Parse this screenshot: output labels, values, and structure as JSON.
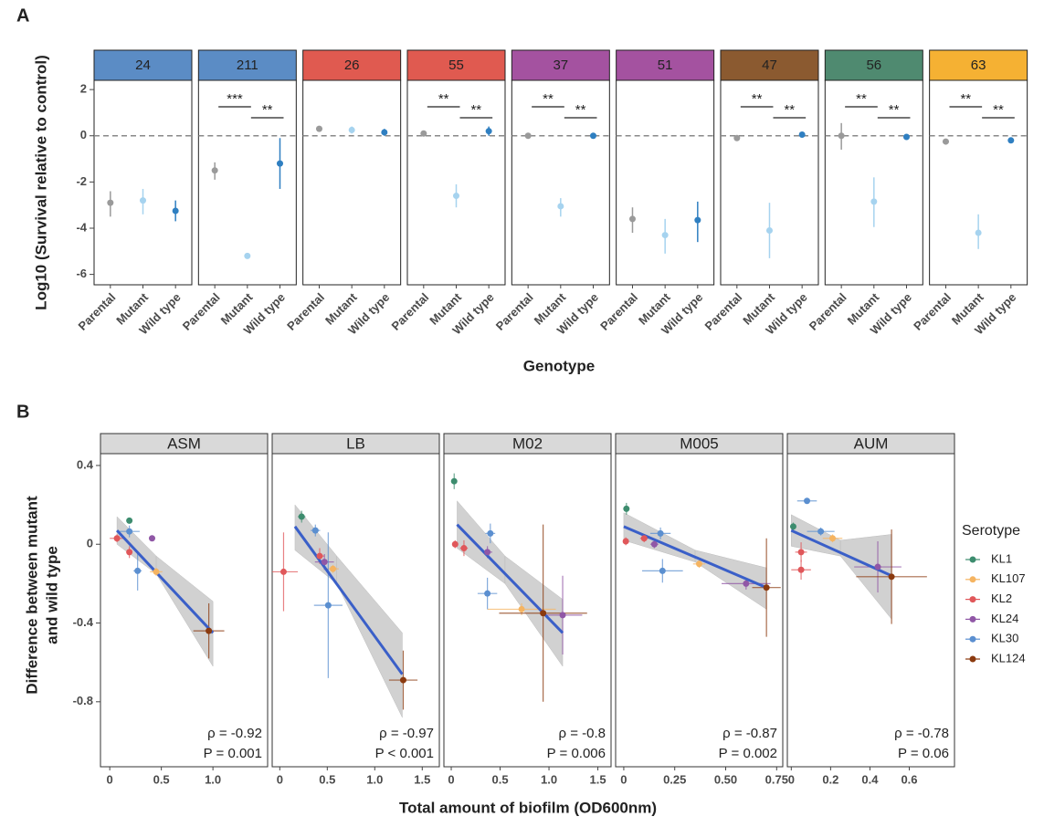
{
  "chart_data": [
    {
      "type": "pointrange",
      "panel_label": "A",
      "ylabel": "Log10 (Survival relative to control)",
      "xlabel": "Genotype",
      "categories": [
        "Parental",
        "Mutant",
        "Wild type"
      ],
      "colors": [
        "#9a9a9a",
        "#a6d3ef",
        "#2f7fc1"
      ],
      "ylim": [
        -6.45,
        2.4
      ],
      "yticks": [
        2,
        0,
        -2,
        -4,
        -6
      ],
      "hline": 0,
      "facets": [
        {
          "name": "24",
          "strip_color": "#5b8cc5",
          "values": [
            -2.9,
            -2.8,
            -3.25
          ],
          "lower": [
            -3.5,
            -3.4,
            -3.7
          ],
          "upper": [
            -2.4,
            -2.3,
            -2.8
          ],
          "significance": []
        },
        {
          "name": "211",
          "strip_color": "#5b8cc5",
          "values": [
            -1.5,
            -5.2,
            -1.2
          ],
          "lower": [
            -1.9,
            -5.25,
            -2.3
          ],
          "upper": [
            -1.15,
            -5.15,
            -0.1
          ],
          "significance": [
            "***",
            "**"
          ]
        },
        {
          "name": "26",
          "strip_color": "#e05a50",
          "values": [
            0.3,
            0.25,
            0.15
          ],
          "lower": [
            0.2,
            0.1,
            0.0
          ],
          "upper": [
            0.4,
            0.4,
            0.3
          ],
          "significance": []
        },
        {
          "name": "55",
          "strip_color": "#e05a50",
          "values": [
            0.1,
            -2.6,
            0.2
          ],
          "lower": [
            0.05,
            -3.1,
            0.0
          ],
          "upper": [
            0.2,
            -2.1,
            0.4
          ],
          "significance": [
            "**",
            "**"
          ]
        },
        {
          "name": "37",
          "strip_color": "#a452a0",
          "values": [
            0.0,
            -3.05,
            0.0
          ],
          "lower": [
            -0.05,
            -3.5,
            -0.05
          ],
          "upper": [
            0.05,
            -2.7,
            0.05
          ],
          "significance": [
            "**",
            "**"
          ]
        },
        {
          "name": "51",
          "strip_color": "#a452a0",
          "values": [
            -3.6,
            -4.3,
            -3.65
          ],
          "lower": [
            -4.2,
            -5.1,
            -4.6
          ],
          "upper": [
            -3.1,
            -3.6,
            -2.85
          ],
          "significance": []
        },
        {
          "name": "47",
          "strip_color": "#8b5a30",
          "values": [
            -0.1,
            -4.1,
            0.05
          ],
          "lower": [
            -0.2,
            -5.3,
            0.0
          ],
          "upper": [
            0.0,
            -2.9,
            0.1
          ],
          "significance": [
            "**",
            "**"
          ]
        },
        {
          "name": "56",
          "strip_color": "#4f8a70",
          "values": [
            0.0,
            -2.85,
            -0.05
          ],
          "lower": [
            -0.6,
            -3.95,
            -0.1
          ],
          "upper": [
            0.55,
            -1.8,
            0.0
          ],
          "significance": [
            "**",
            "**"
          ]
        },
        {
          "name": "63",
          "strip_color": "#f5b133",
          "values": [
            -0.25,
            -4.2,
            -0.2
          ],
          "lower": [
            -0.3,
            -4.9,
            -0.25
          ],
          "upper": [
            -0.2,
            -3.4,
            -0.15
          ],
          "significance": [
            "**",
            "**"
          ]
        }
      ]
    },
    {
      "type": "scatter",
      "panel_label": "B",
      "ylabel": [
        "Difference between mutant",
        "and wild type"
      ],
      "xlabel": "Total amount of biofilm (OD600nm)",
      "legend_title": "Serotype",
      "ylim": [
        -1.13,
        0.46
      ],
      "yticks": [
        0.4,
        0,
        -0.4,
        -0.8
      ],
      "fit_color": "#3a5fc8",
      "facets": [
        {
          "name": "ASM",
          "xlim": [
            -0.09,
            1.53
          ],
          "xticks": [
            0,
            0.5,
            {
              "value": 1,
              "label": "1.0"
            }
          ],
          "fit_x": [
            0.07,
            1.0
          ],
          "fit_y": [
            0.07,
            -0.45
          ],
          "band_x": [
            0.07,
            0.45,
            1.0
          ],
          "band_lower": [
            0.0,
            -0.15,
            -0.62
          ],
          "band_upper": [
            0.14,
            -0.06,
            -0.29
          ],
          "rho": "ρ = -0.92",
          "p": "P = 0.001"
        },
        {
          "name": "LB",
          "xlim": [
            -0.08,
            1.68
          ],
          "xticks": [
            0,
            0.5,
            {
              "value": 1,
              "label": "1.0"
            },
            1.5
          ],
          "fit_x": [
            0.16,
            1.29
          ],
          "fit_y": [
            0.09,
            -0.66
          ],
          "band_x": [
            0.16,
            0.6,
            1.29
          ],
          "band_lower": [
            -0.03,
            -0.2,
            -0.88
          ],
          "band_upper": [
            0.2,
            -0.06,
            -0.45
          ],
          "rho": "ρ = -0.97",
          "p": "P < 0.001"
        },
        {
          "name": "M02",
          "xlim": [
            -0.075,
            1.635
          ],
          "xticks": [
            0,
            0.5,
            {
              "value": 1,
              "label": "1.0"
            },
            1.5
          ],
          "fit_x": [
            0.06,
            1.14
          ],
          "fit_y": [
            0.1,
            -0.45
          ],
          "band_x": [
            0.06,
            0.55,
            1.14
          ],
          "band_lower": [
            -0.02,
            -0.2,
            -0.62
          ],
          "band_upper": [
            0.22,
            -0.06,
            -0.28
          ],
          "rho": "ρ = -0.8",
          "p": "P = 0.006"
        },
        {
          "name": "M005",
          "xlim": [
            -0.04,
            0.78
          ],
          "xticks": [
            0,
            0.25,
            {
              "value": 0.5,
              "label": "0.50"
            },
            0.75
          ],
          "fit_x": [
            0.0,
            0.7
          ],
          "fit_y": [
            0.09,
            -0.22
          ],
          "band_x": [
            0.0,
            0.35,
            0.7
          ],
          "band_lower": [
            0.02,
            -0.09,
            -0.33
          ],
          "band_upper": [
            0.16,
            -0.03,
            -0.12
          ],
          "rho": "ρ = -0.87",
          "p": "P = 0.002"
        },
        {
          "name": "AUM",
          "xlim": [
            -0.02,
            0.83
          ],
          "xticks": [
            0,
            0.2,
            0.4,
            0.6
          ],
          "fit_x": [
            0.0,
            0.51
          ],
          "fit_y": [
            0.07,
            -0.16
          ],
          "band_x": [
            0.0,
            0.25,
            0.51
          ],
          "band_lower": [
            -0.01,
            -0.06,
            -0.38
          ],
          "band_upper": [
            0.15,
            0.02,
            0.05
          ],
          "rho": "ρ = -0.78",
          "p": "P = 0.06"
        }
      ],
      "series": [
        {
          "name": "KL1",
          "color": "#3d8c6e",
          "x": [
            [
              0.19
            ],
            [
              0.23
            ],
            [
              0.03
            ],
            [
              0.013
            ],
            [
              0.01
            ]
          ],
          "y": [
            [
              0.12
            ],
            [
              0.14
            ],
            [
              0.32
            ],
            [
              0.18
            ],
            [
              0.09
            ]
          ],
          "xerr": [
            [
              0.02
            ],
            [
              0.04
            ],
            [
              0.02
            ],
            [
              0.01
            ],
            [
              0.01
            ]
          ],
          "yerr": [
            [
              0.01
            ],
            [
              0.03
            ],
            [
              0.04
            ],
            [
              0.03
            ],
            [
              0.02
            ]
          ]
        },
        {
          "name": "KL107",
          "color": "#f5b461",
          "x": [
            [
              0.45
            ],
            [
              0.56
            ],
            [
              0.72
            ],
            [
              0.37
            ],
            [
              0.21
            ]
          ],
          "y": [
            [
              -0.14
            ],
            [
              -0.125
            ],
            [
              -0.33
            ],
            [
              -0.1
            ],
            [
              0.03
            ]
          ],
          "xerr": [
            [
              0.06
            ],
            [
              0.06
            ],
            [
              0.35
            ],
            [
              0.03
            ],
            [
              0.05
            ]
          ],
          "yerr": [
            [
              0.02
            ],
            [
              0.02
            ],
            [
              0.03
            ],
            [
              0.02
            ],
            [
              0.02
            ]
          ]
        },
        {
          "name": "KL2",
          "color": "#e0575a",
          "x": [
            [
              0.07,
              0.19
            ],
            [
              0.04,
              0.42
            ],
            [
              0.04,
              0.13
            ],
            [
              0.01,
              0.1
            ],
            [
              0.05,
              0.05
            ]
          ],
          "y": [
            [
              0.03,
              -0.04
            ],
            [
              -0.14,
              -0.06
            ],
            [
              0,
              -0.02
            ],
            [
              0.015,
              0.03
            ],
            [
              -0.04,
              -0.13
            ]
          ],
          "xerr": [
            [
              0.07,
              0.02
            ],
            [
              0.15,
              0.05
            ],
            [
              0.03,
              0.04
            ],
            [
              0.01,
              0.02
            ],
            [
              0.03,
              0.05
            ]
          ],
          "yerr": [
            [
              0.02,
              0.03
            ],
            [
              0.2,
              0.04
            ],
            [
              0.02,
              0.04
            ],
            [
              0.02,
              0.02
            ],
            [
              0.05,
              0.05
            ]
          ]
        },
        {
          "name": "KL24",
          "color": "#9057a6",
          "x": [
            [
              0.41
            ],
            [
              0.47
            ],
            [
              0.37,
              1.14
            ],
            [
              0.15,
              0.6
            ],
            [
              0.44
            ]
          ],
          "y": [
            [
              0.03
            ],
            [
              -0.09
            ],
            [
              -0.04,
              -0.36
            ],
            [
              0,
              -0.2
            ],
            [
              -0.115
            ]
          ],
          "xerr": [
            [
              0.03
            ],
            [
              0.1
            ],
            [
              0.05,
              0.2
            ],
            [
              0.02,
              0.12
            ],
            [
              0.12
            ]
          ],
          "yerr": [
            [
              0.01
            ],
            [
              0.04
            ],
            [
              0.03,
              0.2
            ],
            [
              0.02,
              0.03
            ],
            [
              0.13
            ]
          ]
        },
        {
          "name": "KL30",
          "color": "#5b8fd0",
          "x": [
            [
              0.19,
              0.27
            ],
            [
              0.375,
              0.51
            ],
            [
              0.4,
              0.37
            ],
            [
              0.18,
              0.19
            ],
            [
              0.08,
              0.15
            ]
          ],
          "y": [
            [
              0.065,
              -0.135
            ],
            [
              0.07,
              -0.31
            ],
            [
              0.055,
              -0.25
            ],
            [
              0.055,
              -0.135
            ],
            [
              0.22,
              0.065
            ]
          ],
          "xerr": [
            [
              0.1,
              0.04
            ],
            [
              0.05,
              0.15
            ],
            [
              0.05,
              0.1
            ],
            [
              0.05,
              0.1
            ],
            [
              0.05,
              0.07
            ]
          ],
          "yerr": [
            [
              0.03,
              0.1
            ],
            [
              0.03,
              0.37
            ],
            [
              0.05,
              0.08
            ],
            [
              0.03,
              0.06
            ],
            [
              0.01,
              0.02
            ]
          ]
        },
        {
          "name": "KL124",
          "color": "#8b3a0f",
          "x": [
            [
              0.96
            ],
            [
              1.3
            ],
            [
              0.94
            ],
            [
              0.7
            ],
            [
              0.51
            ]
          ],
          "y": [
            [
              -0.44
            ],
            [
              -0.69
            ],
            [
              -0.35
            ],
            [
              -0.22
            ],
            [
              -0.165
            ]
          ],
          "xerr": [
            [
              0.15
            ],
            [
              0.15
            ],
            [
              0.45
            ],
            [
              0.07
            ],
            [
              0.18
            ]
          ],
          "yerr": [
            [
              0.14
            ],
            [
              0.15
            ],
            [
              0.45
            ],
            [
              0.25
            ],
            [
              0.24
            ]
          ]
        }
      ]
    }
  ]
}
